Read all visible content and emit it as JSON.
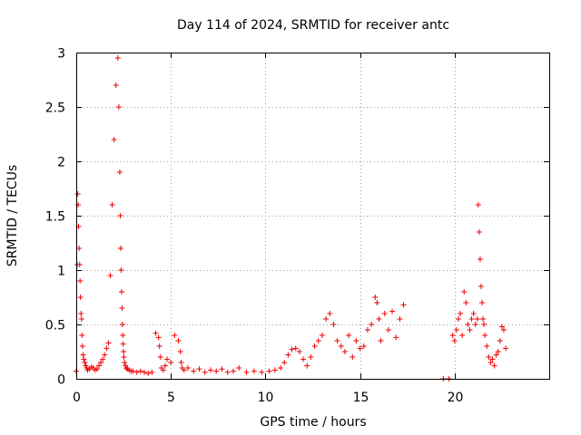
{
  "chart_data": {
    "type": "scatter",
    "title": "Day 114 of 2024, SRMTID for receiver antc",
    "xlabel": "GPS time / hours",
    "ylabel": "SRMTID / TECUs",
    "xlim": [
      0,
      25
    ],
    "ylim": [
      0,
      3
    ],
    "xticks": [
      0,
      5,
      10,
      15,
      20
    ],
    "yticks": [
      0,
      0.5,
      1,
      1.5,
      2,
      2.5,
      3
    ],
    "xtick_labels": [
      "0",
      "5",
      "10",
      "15",
      "20"
    ],
    "ytick_labels": [
      "0",
      "0.5",
      "1",
      "1.5",
      "2",
      "2.5",
      "3"
    ],
    "grid": true,
    "legend": "none",
    "marker": "+",
    "series": [
      {
        "name": "SRMTID",
        "color": "#ee0000",
        "x": [
          0.0,
          0.05,
          0.08,
          0.1,
          0.12,
          0.15,
          0.18,
          0.2,
          0.22,
          0.25,
          0.28,
          0.3,
          0.33,
          0.36,
          0.4,
          0.45,
          0.5,
          0.55,
          0.6,
          0.7,
          0.8,
          0.9,
          1.0,
          1.1,
          1.2,
          1.3,
          1.4,
          1.5,
          1.6,
          1.7,
          1.8,
          1.9,
          2.0,
          2.1,
          2.2,
          2.25,
          2.3,
          2.33,
          2.35,
          2.37,
          2.4,
          2.42,
          2.44,
          2.46,
          2.48,
          2.5,
          2.52,
          2.55,
          2.6,
          2.65,
          2.7,
          2.8,
          2.9,
          3.0,
          3.2,
          3.4,
          3.6,
          3.8,
          4.0,
          4.2,
          4.35,
          4.4,
          4.45,
          4.5,
          4.6,
          4.7,
          4.8,
          5.0,
          5.2,
          5.4,
          5.5,
          5.55,
          5.6,
          5.7,
          5.9,
          6.2,
          6.5,
          6.8,
          7.1,
          7.4,
          7.7,
          8.0,
          8.3,
          8.6,
          9.0,
          9.4,
          9.8,
          10.2,
          10.5,
          10.8,
          11.0,
          11.2,
          11.4,
          11.6,
          11.8,
          12.0,
          12.2,
          12.4,
          12.6,
          12.8,
          13.0,
          13.2,
          13.4,
          13.6,
          13.8,
          14.0,
          14.2,
          14.4,
          14.6,
          14.8,
          15.0,
          15.2,
          15.4,
          15.6,
          15.8,
          15.9,
          16.0,
          16.1,
          16.3,
          16.5,
          16.7,
          16.9,
          17.1,
          17.3,
          19.4,
          19.7,
          19.9,
          20.0,
          20.1,
          20.2,
          20.3,
          20.4,
          20.5,
          20.6,
          20.7,
          20.8,
          20.9,
          21.0,
          21.1,
          21.2,
          21.25,
          21.3,
          21.35,
          21.4,
          21.45,
          21.5,
          21.55,
          21.6,
          21.7,
          21.8,
          21.9,
          22.0,
          22.1,
          22.2,
          22.3,
          22.4,
          22.5,
          22.6,
          22.7
        ],
        "y": [
          0.07,
          1.05,
          1.7,
          1.6,
          1.4,
          1.2,
          1.05,
          0.9,
          0.75,
          0.6,
          0.55,
          0.4,
          0.3,
          0.22,
          0.18,
          0.15,
          0.12,
          0.1,
          0.08,
          0.09,
          0.11,
          0.1,
          0.08,
          0.09,
          0.12,
          0.15,
          0.18,
          0.22,
          0.28,
          0.33,
          0.95,
          1.6,
          2.2,
          2.7,
          2.95,
          2.5,
          1.9,
          1.5,
          1.2,
          1.0,
          0.8,
          0.65,
          0.5,
          0.4,
          0.32,
          0.25,
          0.2,
          0.15,
          0.12,
          0.1,
          0.09,
          0.08,
          0.07,
          0.07,
          0.06,
          0.07,
          0.06,
          0.05,
          0.06,
          0.42,
          0.38,
          0.3,
          0.2,
          0.1,
          0.08,
          0.12,
          0.18,
          0.15,
          0.4,
          0.35,
          0.25,
          0.15,
          0.1,
          0.08,
          0.1,
          0.07,
          0.09,
          0.06,
          0.08,
          0.07,
          0.09,
          0.06,
          0.07,
          0.1,
          0.06,
          0.07,
          0.06,
          0.07,
          0.08,
          0.1,
          0.15,
          0.22,
          0.27,
          0.28,
          0.25,
          0.18,
          0.12,
          0.2,
          0.3,
          0.35,
          0.4,
          0.55,
          0.6,
          0.5,
          0.35,
          0.3,
          0.25,
          0.4,
          0.2,
          0.35,
          0.28,
          0.3,
          0.45,
          0.5,
          0.75,
          0.7,
          0.55,
          0.35,
          0.6,
          0.45,
          0.62,
          0.38,
          0.55,
          0.68,
          0.0,
          0.0,
          0.4,
          0.35,
          0.45,
          0.55,
          0.6,
          0.4,
          0.8,
          0.7,
          0.5,
          0.45,
          0.55,
          0.6,
          0.5,
          0.55,
          1.6,
          1.35,
          1.1,
          0.85,
          0.7,
          0.55,
          0.5,
          0.4,
          0.3,
          0.2,
          0.15,
          0.18,
          0.12,
          0.22,
          0.25,
          0.35,
          0.48,
          0.45,
          0.28
        ]
      }
    ]
  }
}
